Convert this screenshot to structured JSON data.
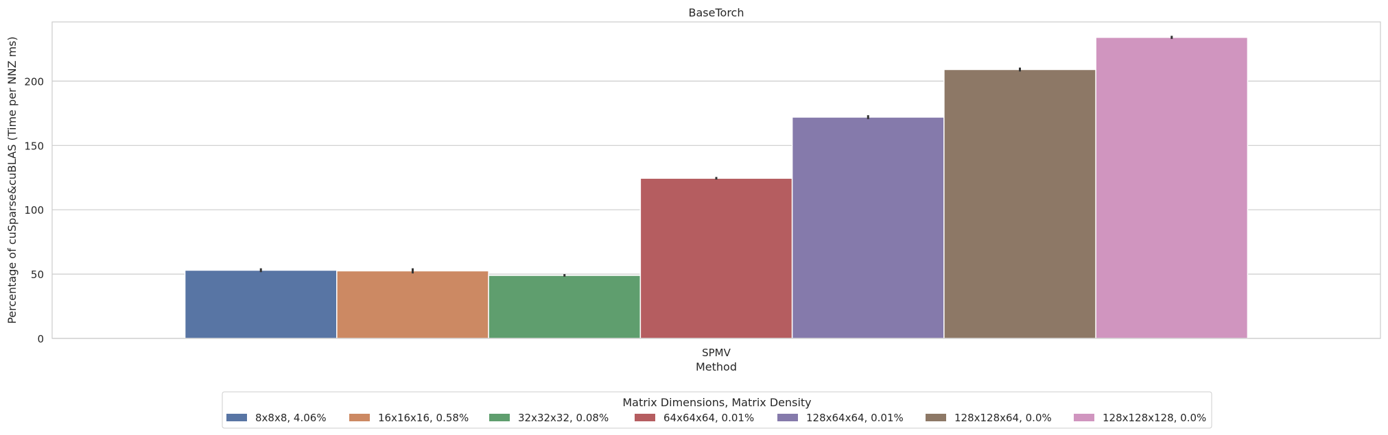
{
  "chart_data": {
    "type": "bar",
    "title": "BaseTorch",
    "xlabel": "Method",
    "ylabel": "Percentage of cuSparse&cuBLAS (Time per NNZ ms)",
    "categories": [
      "SPMV"
    ],
    "ylim": [
      0,
      246
    ],
    "yticks": [
      0,
      50,
      100,
      150,
      200
    ],
    "grid": true,
    "legend": {
      "title": "Matrix Dimensions, Matrix Density",
      "placement": "bottom-center"
    },
    "series": [
      {
        "name": "8x8x8, 4.06%",
        "values": [
          53
        ],
        "error": [
          1.5
        ],
        "color": "#5875a4"
      },
      {
        "name": "16x16x16, 0.58%",
        "values": [
          52.5
        ],
        "error": [
          2
        ],
        "color": "#cc8963"
      },
      {
        "name": "32x32x32, 0.08%",
        "values": [
          49
        ],
        "error": [
          1
        ],
        "color": "#5f9e6e"
      },
      {
        "name": "64x64x64, 0.01%",
        "values": [
          124.5
        ],
        "error": [
          1
        ],
        "color": "#b55d60"
      },
      {
        "name": "128x64x64, 0.01%",
        "values": [
          172
        ],
        "error": [
          1.5
        ],
        "color": "#857aab"
      },
      {
        "name": "128x128x64, 0.0%",
        "values": [
          209
        ],
        "error": [
          1.5
        ],
        "color": "#8d7866"
      },
      {
        "name": "128x128x128, 0.0%",
        "values": [
          234
        ],
        "error": [
          1.2
        ],
        "color": "#d095bf"
      }
    ]
  }
}
